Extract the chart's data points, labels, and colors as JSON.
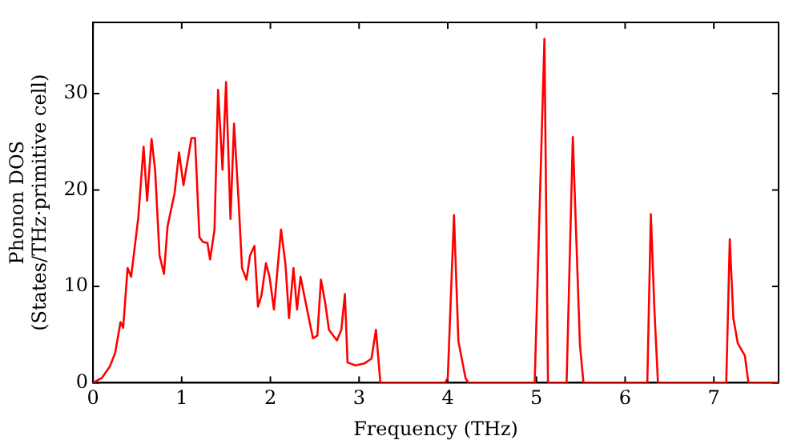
{
  "chart_data": {
    "type": "line",
    "xlabel": "Frequency (THz)",
    "ylabel": "Phonon DOS\n(States/THz·primitive cell)",
    "xlim": [
      0,
      7.73
    ],
    "ylim": [
      0,
      37.4
    ],
    "xticks": [
      0,
      1,
      2,
      3,
      4,
      5,
      6,
      7
    ],
    "yticks": [
      0,
      10,
      20,
      30
    ],
    "grid": false,
    "legend": false,
    "marker": "none",
    "line_style": "solid",
    "series": [
      {
        "color": "#ff0000",
        "x": [
          0,
          0.1,
          0.19,
          0.25,
          0.31,
          0.34,
          0.39,
          0.43,
          0.51,
          0.57,
          0.61,
          0.66,
          0.7,
          0.75,
          0.8,
          0.84,
          0.92,
          0.97,
          1.02,
          1.11,
          1.15,
          1.2,
          1.24,
          1.29,
          1.32,
          1.37,
          1.41,
          1.46,
          1.5,
          1.55,
          1.59,
          1.64,
          1.68,
          1.73,
          1.77,
          1.82,
          1.86,
          1.9,
          1.95,
          1.99,
          2.04,
          2.12,
          2.17,
          2.21,
          2.26,
          2.3,
          2.34,
          2.42,
          2.48,
          2.53,
          2.57,
          2.62,
          2.66,
          2.75,
          2.8,
          2.84,
          2.87,
          2.96,
          3.06,
          3.14,
          3.19,
          3.24,
          3.97,
          4.0,
          4.07,
          4.12,
          4.2,
          4.23,
          4.98,
          5.09,
          5.13,
          5.34,
          5.41,
          5.49,
          5.53,
          6.25,
          6.29,
          6.33,
          6.37,
          7.14,
          7.18,
          7.22,
          7.27,
          7.35,
          7.39,
          7.73
        ],
        "values": [
          0,
          0.5,
          1.7,
          3.1,
          6.3,
          5.7,
          11.9,
          11,
          17.1,
          24.5,
          18.9,
          25.3,
          22.1,
          13.2,
          11.3,
          16.2,
          19.7,
          23.9,
          20.5,
          25.4,
          25.4,
          15.1,
          14.6,
          14.5,
          12.8,
          15.9,
          30.4,
          22.1,
          31.2,
          17,
          26.9,
          19.1,
          11.9,
          10.7,
          13.2,
          14.2,
          7.9,
          9.1,
          12.4,
          11,
          7.6,
          15.9,
          12.3,
          6.7,
          11.9,
          7.6,
          11,
          7.3,
          4.6,
          4.9,
          10.7,
          8.2,
          5.5,
          4.4,
          5.5,
          9.2,
          2.1,
          1.8,
          2,
          2.5,
          5.5,
          0,
          0,
          0.5,
          17.4,
          4.3,
          0.5,
          0,
          0,
          35.7,
          0,
          0,
          25.5,
          4,
          0,
          0,
          17.5,
          7.6,
          0,
          0,
          14.9,
          6.7,
          4.1,
          2.8,
          0,
          0
        ]
      }
    ]
  }
}
